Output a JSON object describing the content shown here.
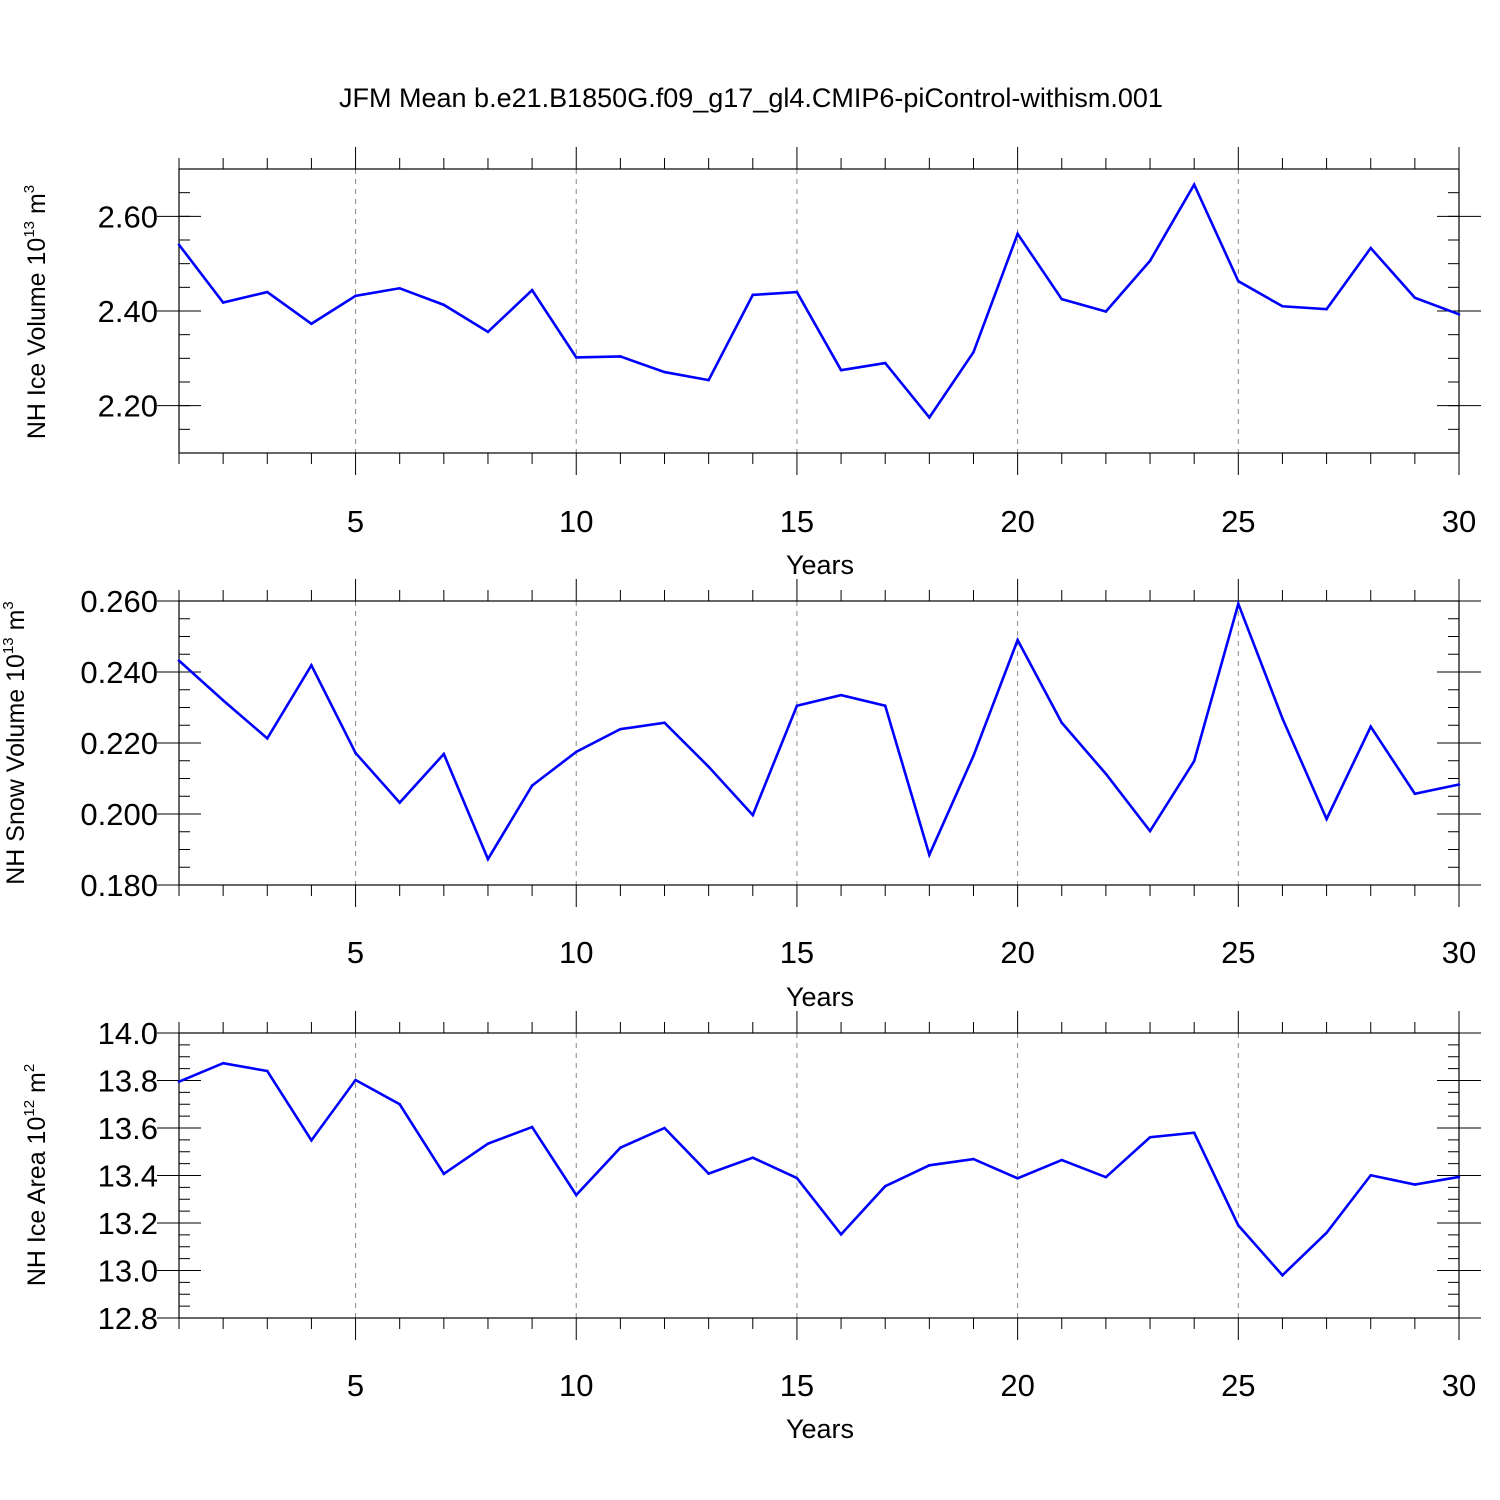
{
  "figure": {
    "title": "JFM Mean b.e21.B1850G.f09_g17_gl4.CMIP6-piControl-withism.001"
  },
  "colors": {
    "series": "#0000ff",
    "frame": "#000000",
    "grid": "#888888"
  },
  "chart_data": [
    {
      "type": "line",
      "name": "ice-volume",
      "title": "JFM Mean b.e21.B1850G.f09_g17_gl4.CMIP6-piControl-withism.001",
      "xlabel": "Years",
      "ylabel": {
        "text": "NH Ice Volume 10",
        "sup1": "13",
        "mid": " m",
        "sup2": "3"
      },
      "xlim": [
        1,
        30
      ],
      "ylim": [
        2.1,
        2.7
      ],
      "xticks": [
        5,
        10,
        15,
        20,
        25,
        30
      ],
      "yticks": [
        2.2,
        2.4,
        2.6
      ],
      "ytick_labels": [
        "2.20",
        "2.40",
        "2.60"
      ],
      "yminor_step": 0.05,
      "grid": "vertical-dashed",
      "x": [
        1,
        2,
        3,
        4,
        5,
        6,
        7,
        8,
        9,
        10,
        11,
        12,
        13,
        14,
        15,
        16,
        17,
        18,
        19,
        20,
        21,
        22,
        23,
        24,
        25,
        26,
        27,
        28,
        29,
        30
      ],
      "series": [
        {
          "name": "NH Ice Volume",
          "values": [
            2.54,
            2.418,
            2.44,
            2.373,
            2.432,
            2.448,
            2.413,
            2.356,
            2.444,
            2.302,
            2.304,
            2.271,
            2.254,
            2.434,
            2.44,
            2.275,
            2.29,
            2.175,
            2.313,
            2.563,
            2.425,
            2.399,
            2.506,
            2.667,
            2.463,
            2.41,
            2.404,
            2.533,
            2.428,
            2.393
          ]
        }
      ]
    },
    {
      "type": "line",
      "name": "snow-volume",
      "xlabel": "Years",
      "ylabel": {
        "text": "NH Snow Volume 10",
        "sup1": "13",
        "mid": " m",
        "sup2": "3"
      },
      "xlim": [
        1,
        30
      ],
      "ylim": [
        0.18,
        0.26
      ],
      "xticks": [
        5,
        10,
        15,
        20,
        25,
        30
      ],
      "yticks": [
        0.18,
        0.2,
        0.22,
        0.24,
        0.26
      ],
      "ytick_labels": [
        "0.180",
        "0.200",
        "0.220",
        "0.240",
        "0.260"
      ],
      "yminor_step": 0.005,
      "grid": "vertical-dashed",
      "x": [
        1,
        2,
        3,
        4,
        5,
        6,
        7,
        8,
        9,
        10,
        11,
        12,
        13,
        14,
        15,
        16,
        17,
        18,
        19,
        20,
        21,
        22,
        23,
        24,
        25,
        26,
        27,
        28,
        29,
        30
      ],
      "series": [
        {
          "name": "NH Snow Volume",
          "values": [
            0.2432,
            0.232,
            0.2213,
            0.2419,
            0.2172,
            0.2032,
            0.2169,
            0.1873,
            0.208,
            0.2175,
            0.2239,
            0.2257,
            0.2133,
            0.1997,
            0.2305,
            0.2335,
            0.2305,
            0.1885,
            0.2164,
            0.249,
            0.2257,
            0.2113,
            0.1952,
            0.2149,
            0.2592,
            0.2269,
            0.1986,
            0.2246,
            0.2057,
            0.2083
          ]
        }
      ]
    },
    {
      "type": "line",
      "name": "ice-area",
      "xlabel": "Years",
      "ylabel": {
        "text": "NH Ice Area 10",
        "sup1": "12",
        "mid": " m",
        "sup2": "2"
      },
      "xlim": [
        1,
        30
      ],
      "ylim": [
        12.8,
        14.0
      ],
      "xticks": [
        5,
        10,
        15,
        20,
        25,
        30
      ],
      "yticks": [
        12.8,
        13.0,
        13.2,
        13.4,
        13.6,
        13.8,
        14.0
      ],
      "ytick_labels": [
        "12.8",
        "13.0",
        "13.2",
        "13.4",
        "13.6",
        "13.8",
        "14.0"
      ],
      "yminor_step": 0.05,
      "grid": "vertical-dashed",
      "x": [
        1,
        2,
        3,
        4,
        5,
        6,
        7,
        8,
        9,
        10,
        11,
        12,
        13,
        14,
        15,
        16,
        17,
        18,
        19,
        20,
        21,
        22,
        23,
        24,
        25,
        26,
        27,
        28,
        29,
        30
      ],
      "series": [
        {
          "name": "NH Ice Area",
          "values": [
            13.795,
            13.873,
            13.84,
            13.548,
            13.802,
            13.7,
            13.407,
            13.534,
            13.604,
            13.318,
            13.517,
            13.6,
            13.408,
            13.475,
            13.389,
            13.152,
            13.355,
            13.443,
            13.469,
            13.388,
            13.465,
            13.393,
            13.561,
            13.58,
            13.19,
            12.98,
            13.159,
            13.401,
            13.362,
            13.394
          ]
        }
      ]
    }
  ]
}
